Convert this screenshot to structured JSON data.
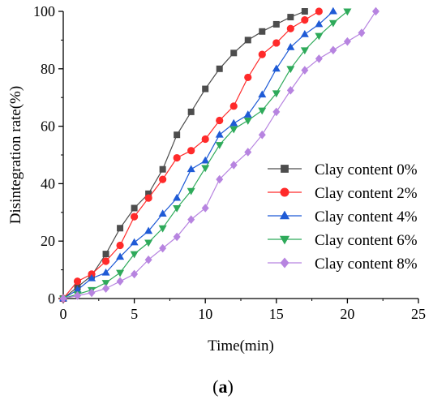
{
  "chart_data": {
    "type": "line",
    "xlabel": "Time(min)",
    "ylabel": "Disintegration rate(%)",
    "xlim": [
      0,
      25
    ],
    "ylim": [
      0,
      100
    ],
    "xticks": [
      0,
      5,
      10,
      15,
      20,
      25
    ],
    "yticks": [
      0,
      20,
      40,
      60,
      80,
      100
    ],
    "grid": false,
    "legend_position": "bottom-right",
    "panel_label": "(a)",
    "series": [
      {
        "name": "Clay content 0%",
        "marker": "square",
        "color": "#4d4d4d",
        "x": [
          0,
          1,
          2,
          3,
          4,
          5,
          6,
          7,
          8,
          9,
          10,
          11,
          12,
          13,
          14,
          15,
          16,
          17
        ],
        "y": [
          0,
          4,
          8,
          15.5,
          24.5,
          31.5,
          36.5,
          45,
          57,
          65,
          73,
          80,
          85.5,
          90,
          93,
          95.5,
          98,
          100
        ]
      },
      {
        "name": "Clay content 2%",
        "marker": "circle",
        "color": "#ff2a2a",
        "x": [
          0,
          1,
          2,
          3,
          4,
          5,
          6,
          7,
          8,
          9,
          10,
          11,
          12,
          13,
          14,
          15,
          16,
          17,
          18
        ],
        "y": [
          0,
          6,
          8.5,
          13,
          18.5,
          28.5,
          35,
          41.5,
          49,
          51.5,
          55.5,
          62,
          67,
          77,
          85,
          89,
          94,
          97,
          100
        ]
      },
      {
        "name": "Clay content 4%",
        "marker": "triangle-up",
        "color": "#1f5bd6",
        "x": [
          0,
          1,
          2,
          3,
          4,
          5,
          6,
          7,
          8,
          9,
          10,
          11,
          12,
          13,
          14,
          15,
          16,
          17,
          18,
          19
        ],
        "y": [
          0,
          3,
          7,
          9,
          14.5,
          19.5,
          23.5,
          29.5,
          35,
          45,
          48,
          57,
          61,
          64,
          71,
          80,
          87.5,
          92,
          95.5,
          100
        ]
      },
      {
        "name": "Clay content 6%",
        "marker": "triangle-down",
        "color": "#2eaa5a",
        "x": [
          0,
          1,
          2,
          3,
          4,
          5,
          6,
          7,
          8,
          9,
          10,
          11,
          12,
          13,
          14,
          15,
          16,
          17,
          18,
          19,
          20
        ],
        "y": [
          0,
          1.5,
          3,
          5.5,
          9,
          15.5,
          19.5,
          24.5,
          31.5,
          37.5,
          45.5,
          53.5,
          59,
          62,
          65.5,
          71.5,
          80,
          86.5,
          91.5,
          96,
          100
        ]
      },
      {
        "name": "Clay content 8%",
        "marker": "diamond",
        "color": "#b784e0",
        "x": [
          0,
          1,
          2,
          3,
          4,
          5,
          6,
          7,
          8,
          9,
          10,
          11,
          12,
          13,
          14,
          15,
          16,
          17,
          18,
          19,
          20,
          21,
          22
        ],
        "y": [
          0,
          1,
          2,
          3.5,
          6,
          8.5,
          13.5,
          17.5,
          21.5,
          27.5,
          31.5,
          41.5,
          46.5,
          51,
          57,
          65,
          72.5,
          79.5,
          83.5,
          86.5,
          89.5,
          92.5,
          100
        ]
      }
    ]
  }
}
